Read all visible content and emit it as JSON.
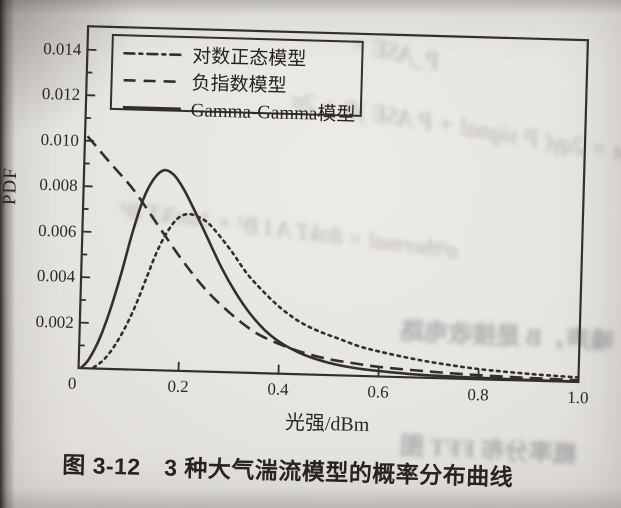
{
  "colors": {
    "paper": "#e6e4df",
    "ink": "#33302b",
    "text": "#2b2824"
  },
  "figure": {
    "caption": "图 3-12　3 种大气湍流模型的概率分布曲线",
    "x_axis_label": "光强/dBm",
    "y_axis_label": "PDF",
    "legend": {
      "items": [
        {
          "label": "对数正态模型",
          "line_style": "dash-dot"
        },
        {
          "label": "负指数模型",
          "line_style": "dashed"
        },
        {
          "label": "Gamma-Gamma模型",
          "line_style": "solid"
        }
      ]
    }
  },
  "chart_data": {
    "type": "line",
    "title": "图 3-12 3 种大气湍流模型的概率分布曲线",
    "xlabel": "光强/dBm",
    "ylabel": "PDF",
    "xlim": [
      0,
      1.0
    ],
    "ylim": [
      0,
      0.015
    ],
    "grid": false,
    "legend_position": "top-left",
    "x_ticks": [
      0,
      0.2,
      0.4,
      0.6,
      0.8,
      1.0
    ],
    "x_tick_labels": [
      "0",
      "0.2",
      "0.4",
      "0.6",
      "0.8",
      "1.0"
    ],
    "y_ticks": [
      0.002,
      0.004,
      0.006,
      0.008,
      0.01,
      0.012,
      0.014
    ],
    "y_tick_labels": [
      "0.002",
      "0.004",
      "0.006",
      "0.008",
      "0.010",
      "0.012",
      "0.014"
    ],
    "series": [
      {
        "name": "负指数模型",
        "line_style": "dashed",
        "x": [
          0.005,
          0.05,
          0.1,
          0.15,
          0.2,
          0.25,
          0.3,
          0.35,
          0.4,
          0.45,
          0.5,
          0.55,
          0.6,
          0.7,
          0.8,
          0.9,
          1.0
        ],
        "y": [
          0.0102,
          0.0091,
          0.0079,
          0.0064,
          0.0049,
          0.0036,
          0.0026,
          0.0018,
          0.0013,
          0.00095,
          0.0007,
          0.00055,
          0.00042,
          0.00028,
          0.00018,
          0.00012,
          8e-05
        ]
      },
      {
        "name": "对数正态模型",
        "line_style": "dash-dot",
        "x": [
          0.03,
          0.05,
          0.07,
          0.09,
          0.11,
          0.13,
          0.15,
          0.17,
          0.19,
          0.21,
          0.23,
          0.25,
          0.27,
          0.3,
          0.33,
          0.36,
          0.4,
          0.44,
          0.48,
          0.52,
          0.56,
          0.6,
          0.66,
          0.72,
          0.8,
          0.9,
          1.0
        ],
        "y": [
          5e-05,
          0.0004,
          0.001,
          0.0018,
          0.0028,
          0.004,
          0.0052,
          0.0061,
          0.0067,
          0.0069,
          0.0068,
          0.00655,
          0.0061,
          0.0053,
          0.0044,
          0.0037,
          0.0029,
          0.0023,
          0.0019,
          0.0016,
          0.0013,
          0.0011,
          0.00085,
          0.00065,
          0.00045,
          0.0003,
          0.0002
        ]
      },
      {
        "name": "Gamma-Gamma模型",
        "line_style": "solid",
        "x": [
          0.005,
          0.02,
          0.04,
          0.06,
          0.08,
          0.1,
          0.12,
          0.14,
          0.16,
          0.18,
          0.2,
          0.22,
          0.25,
          0.28,
          0.31,
          0.34,
          0.37,
          0.4,
          0.44,
          0.48,
          0.52,
          0.56,
          0.6,
          0.66,
          0.72,
          0.8,
          0.9,
          1.0
        ],
        "y": [
          2e-05,
          0.0004,
          0.0013,
          0.0026,
          0.0042,
          0.006,
          0.0075,
          0.0084,
          0.0088,
          0.0086,
          0.008,
          0.0072,
          0.0059,
          0.0046,
          0.0035,
          0.0026,
          0.0019,
          0.0014,
          0.00095,
          0.00065,
          0.00045,
          0.00032,
          0.00024,
          0.00015,
          0.0001,
          6e-05,
          3e-05,
          2e-05
        ]
      }
    ]
  },
  "bleed_through_text": [
    "P_ASE =",
    "σ²shot = 2qγ( P signal + P ASE )B + 2σ",
    "σ²thermal = 8πkT A I B² + 16π²kT B³",
    "噪声，B 是接收电路",
    "概率分布 FFT 图"
  ]
}
